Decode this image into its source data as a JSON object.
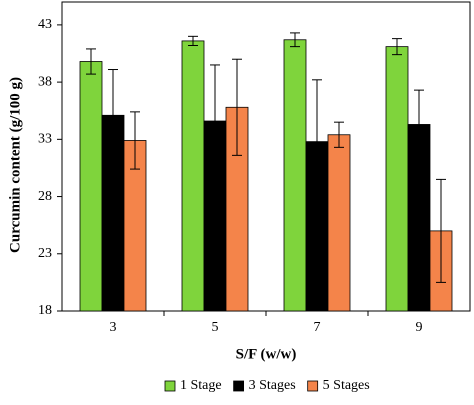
{
  "chart_data": {
    "type": "bar",
    "x_label": "S/F (w/w)",
    "y_label": "Curcumin content (g/100 g)",
    "categories": [
      "3",
      "5",
      "7",
      "9"
    ],
    "series": [
      {
        "name": "1 Stage",
        "color": "#7fd43c",
        "values": [
          39.8,
          41.6,
          41.7,
          41.1
        ],
        "errors": [
          1.1,
          0.4,
          0.6,
          0.7
        ]
      },
      {
        "name": "3 Stages",
        "color": "#000000",
        "values": [
          35.1,
          34.6,
          32.8,
          34.3
        ],
        "errors": [
          4.0,
          4.9,
          5.4,
          3.0
        ]
      },
      {
        "name": "5 Stages",
        "color": "#f4844a",
        "values": [
          32.9,
          35.8,
          33.4,
          25.0
        ],
        "errors": [
          2.5,
          4.2,
          1.1,
          4.5
        ]
      }
    ],
    "ylim": [
      18,
      45
    ],
    "yticks": [
      18,
      23,
      28,
      33,
      38,
      43
    ],
    "grid": false,
    "legend": "bottom"
  }
}
